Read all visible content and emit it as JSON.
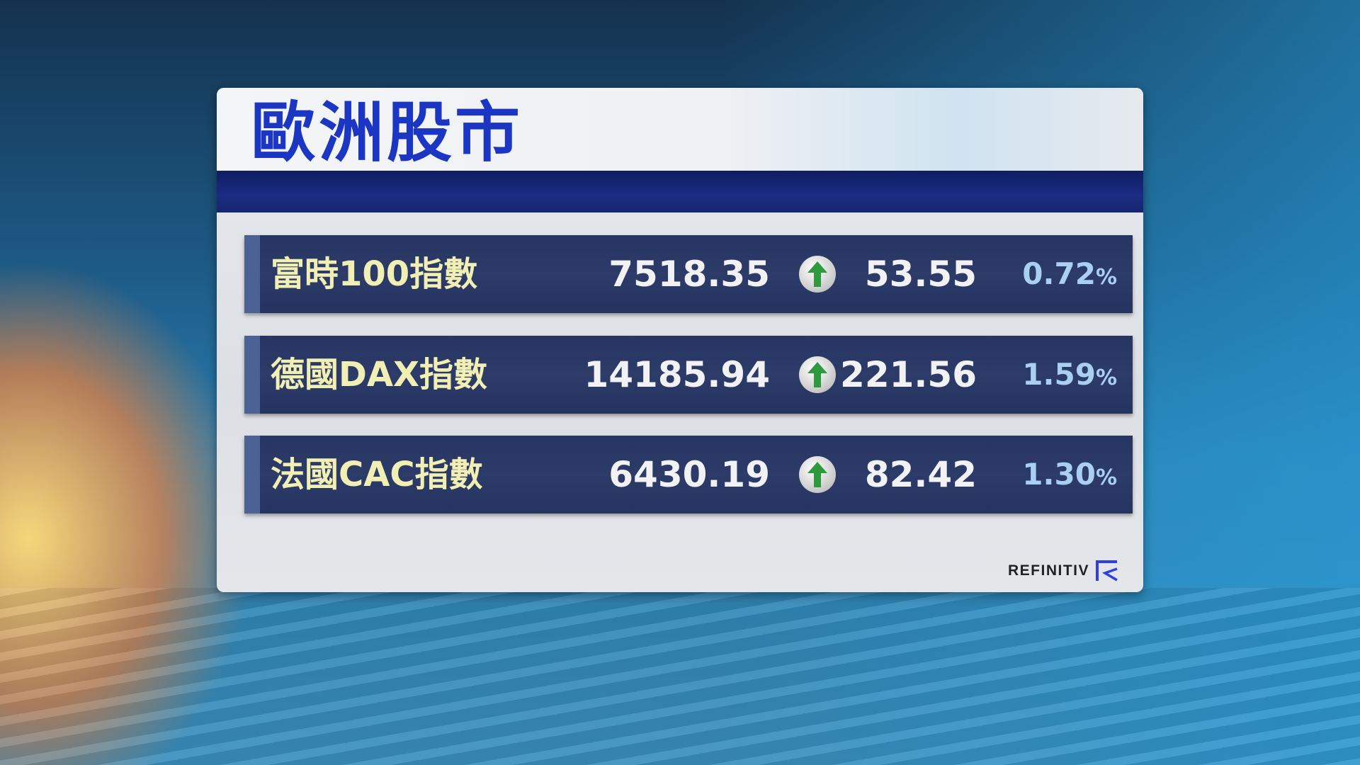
{
  "title": "歐洲股市",
  "rows": [
    {
      "name": "富時100指數",
      "value": "7518.35",
      "direction": "up",
      "change": "53.55",
      "percent": "0.72",
      "percent_sign": "%"
    },
    {
      "name": "德國DAX指數",
      "value": "14185.94",
      "direction": "up",
      "change": "221.56",
      "percent": "1.59",
      "percent_sign": "%"
    },
    {
      "name": "法國CAC指數",
      "value": "6430.19",
      "direction": "up",
      "change": "82.42",
      "percent": "1.30",
      "percent_sign": "%"
    }
  ],
  "icons": {
    "direction": "arrow-up-icon"
  },
  "colors": {
    "title": "#1c36c4",
    "row_bg": "#2c3b68",
    "name": "#f1efb3",
    "percent": "#a9d0f0",
    "arrow": "#2e9a3e"
  },
  "source_logo": "REFINITIV"
}
